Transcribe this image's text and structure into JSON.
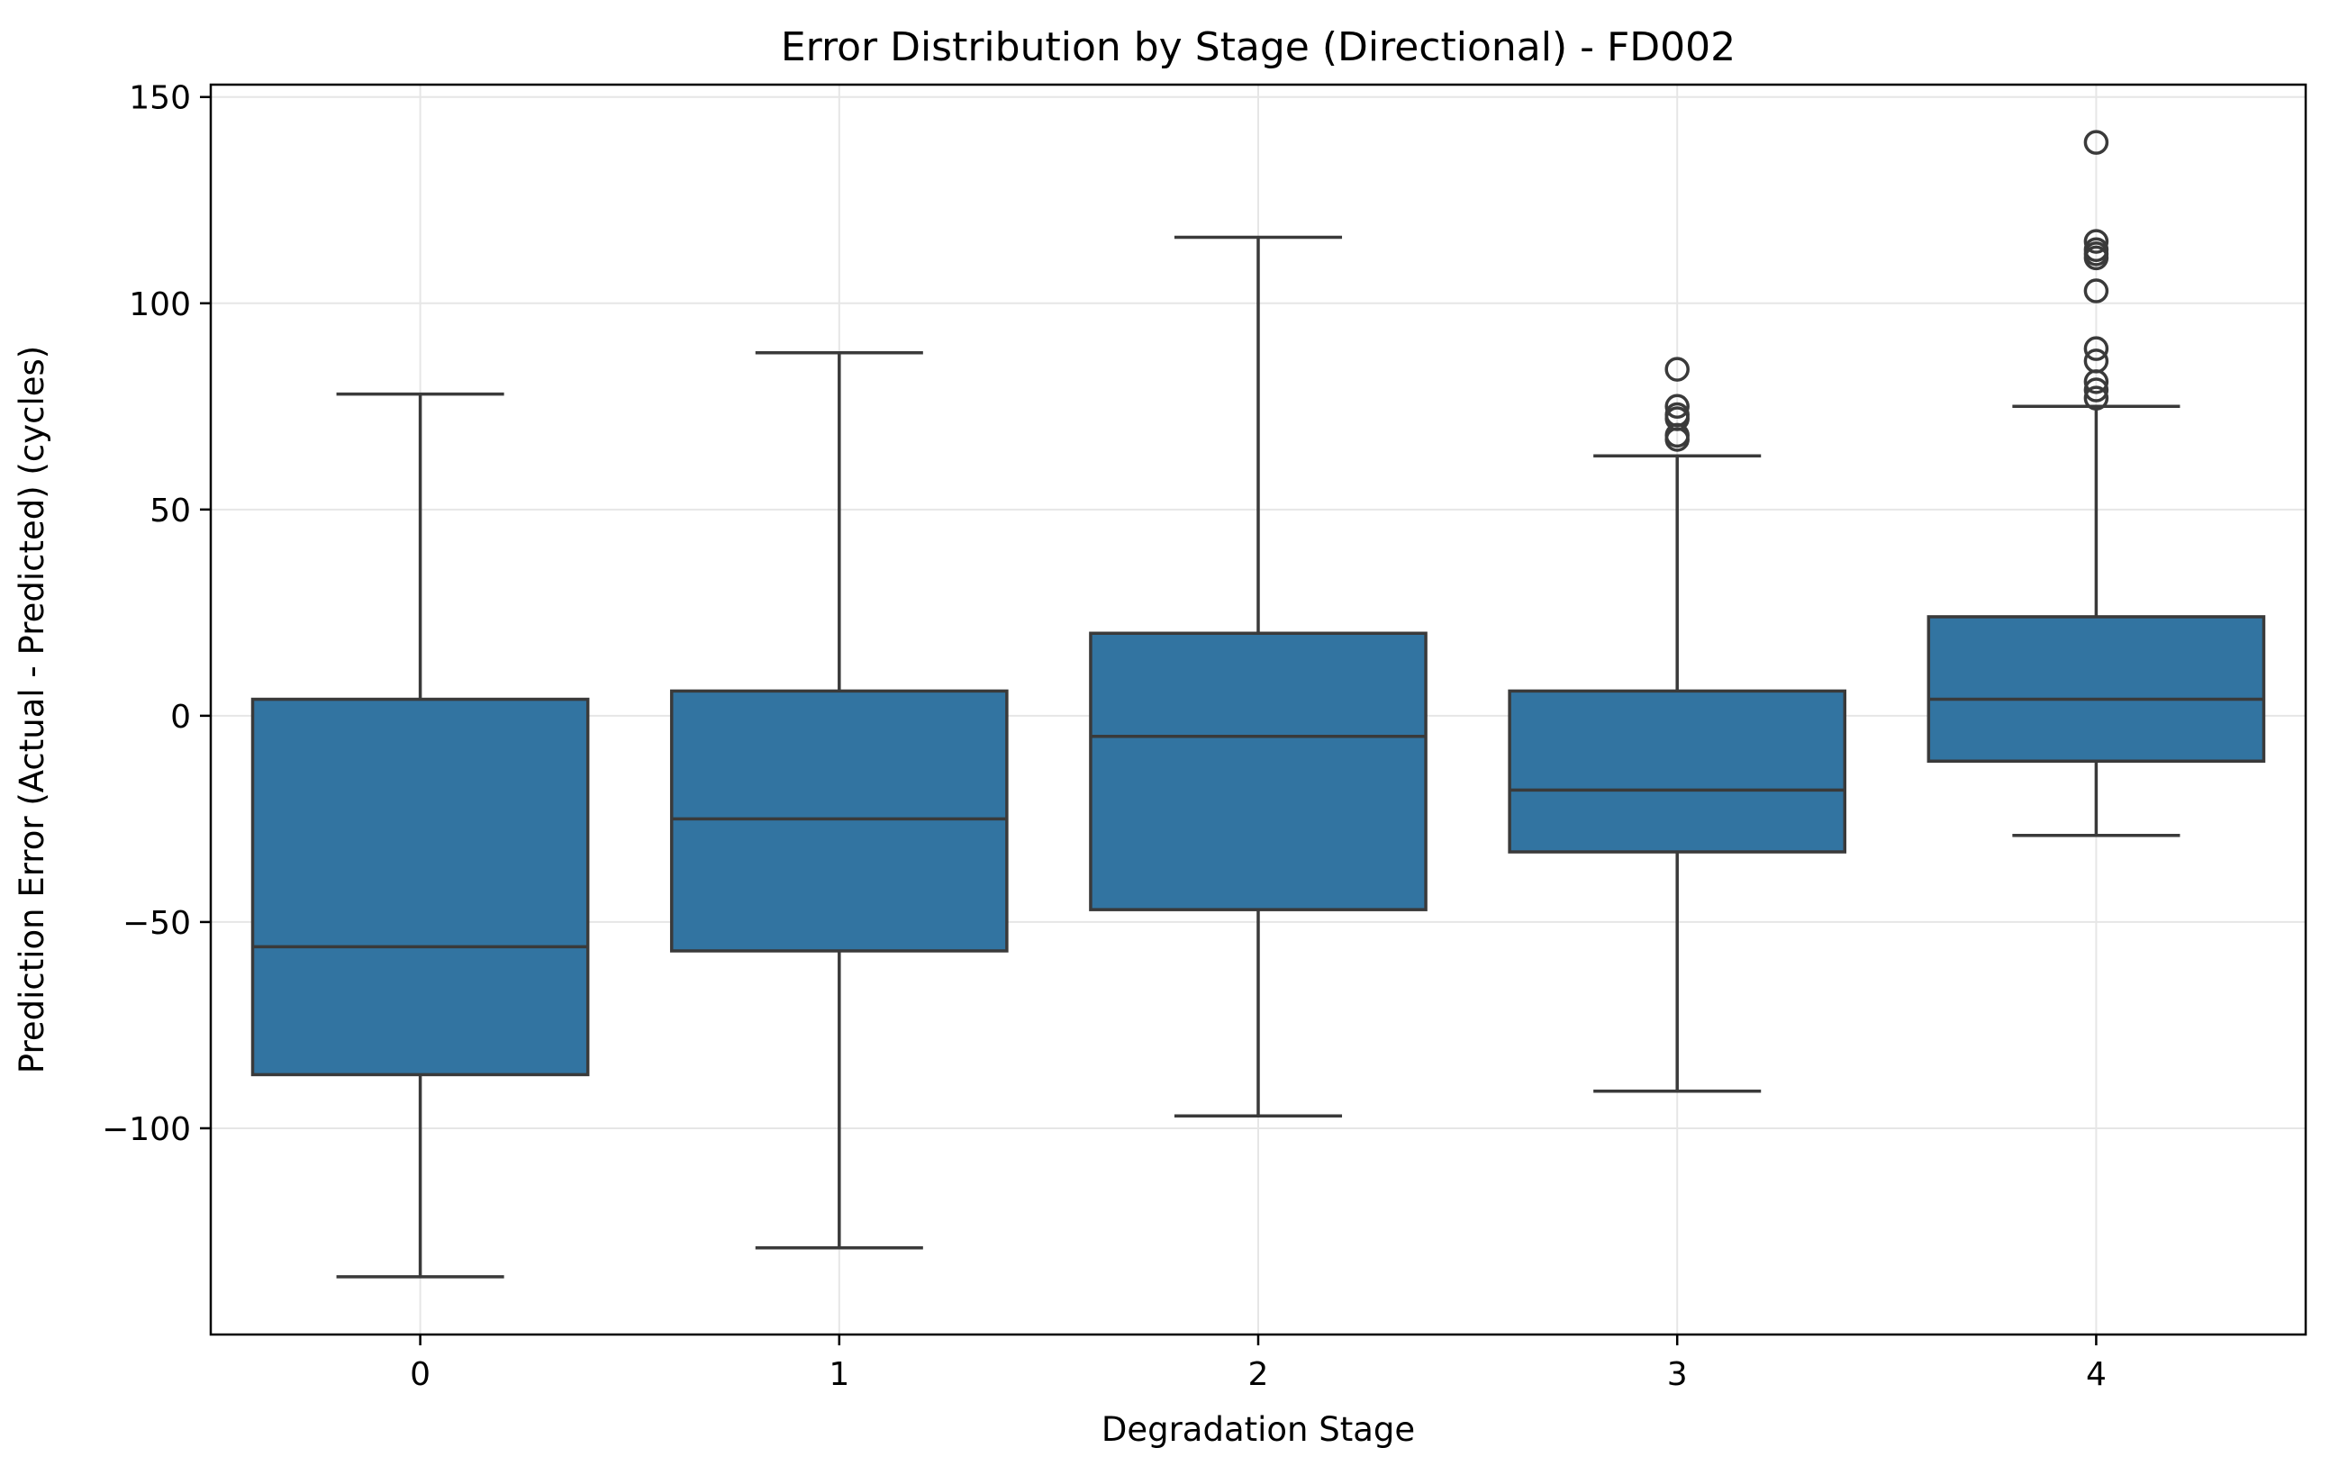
{
  "chart_data": {
    "type": "box",
    "title": "Error Distribution by Stage (Directional) - FD002",
    "xlabel": "Degradation Stage",
    "ylabel": "Prediction Error (Actual - Predicted) (cycles)",
    "ylim": [
      -150,
      153
    ],
    "yticks": [
      150,
      100,
      50,
      0,
      -50,
      -100
    ],
    "ytick_labels": [
      "150",
      "100",
      "50",
      "0",
      "−50",
      "−100"
    ],
    "grid": true,
    "box_color": "#3274a1",
    "edge_color": "#3a3a3a",
    "categories": [
      "0",
      "1",
      "2",
      "3",
      "4"
    ],
    "boxes": [
      {
        "stage": "0",
        "whisker_low": -136,
        "q1": -87,
        "median": -56,
        "q3": 4,
        "whisker_high": 78,
        "outliers": []
      },
      {
        "stage": "1",
        "whisker_low": -129,
        "q1": -57,
        "median": -25,
        "q3": 6,
        "whisker_high": 88,
        "outliers": []
      },
      {
        "stage": "2",
        "whisker_low": -97,
        "q1": -47,
        "median": -5,
        "q3": 20,
        "whisker_high": 116,
        "outliers": []
      },
      {
        "stage": "3",
        "whisker_low": -91,
        "q1": -33,
        "median": -18,
        "q3": 6,
        "whisker_high": 63,
        "outliers": [
          67,
          68,
          72,
          73,
          75,
          84
        ]
      },
      {
        "stage": "4",
        "whisker_low": -29,
        "q1": -11,
        "median": 4,
        "q3": 24,
        "whisker_high": 75,
        "outliers": [
          77,
          79,
          81,
          86,
          89,
          103,
          111,
          112,
          113,
          115,
          139
        ]
      }
    ]
  }
}
